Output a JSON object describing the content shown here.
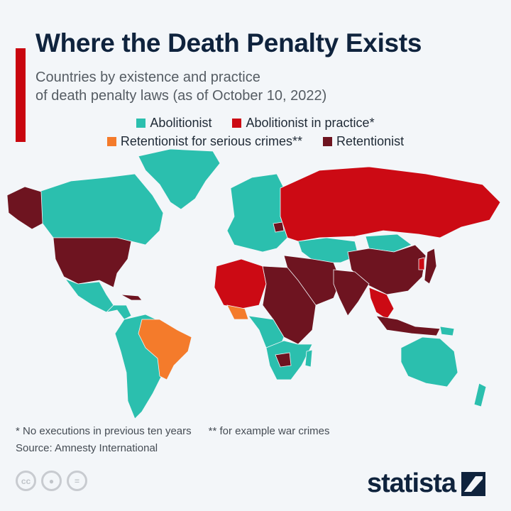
{
  "header": {
    "title": "Where the Death Penalty Exists",
    "subtitle_line1": "Countries by existence and practice",
    "subtitle_line2": "of death penalty laws (as of October 10, 2022)"
  },
  "legend": [
    {
      "label": "Abolitionist",
      "color": "#2bbfae"
    },
    {
      "label": "Abolitionist in practice*",
      "color": "#cc0a14"
    },
    {
      "label": "Retentionist for serious crimes**",
      "color": "#f47b2b"
    },
    {
      "label": "Retentionist",
      "color": "#6e1420"
    }
  ],
  "map": {
    "regions": [
      {
        "region": "Greenland",
        "category": "Abolitionist"
      },
      {
        "region": "Canada",
        "category": "Abolitionist"
      },
      {
        "region": "Alaska / United States",
        "category": "Retentionist"
      },
      {
        "region": "Mexico",
        "category": "Abolitionist"
      },
      {
        "region": "Brazil",
        "category": "Retentionist for serious crimes**"
      },
      {
        "region": "South America (rest)",
        "category": "Abolitionist"
      },
      {
        "region": "Europe",
        "category": "Abolitionist"
      },
      {
        "region": "Russia",
        "category": "Abolitionist in practice*"
      },
      {
        "region": "Kazakhstan",
        "category": "Abolitionist"
      },
      {
        "region": "China",
        "category": "Retentionist"
      },
      {
        "region": "Middle East",
        "category": "Retentionist"
      },
      {
        "region": "India",
        "category": "Retentionist"
      },
      {
        "region": "West Africa",
        "category": "Abolitionist in practice*"
      },
      {
        "region": "North-East Africa",
        "category": "Retentionist"
      },
      {
        "region": "Southern Africa",
        "category": "Abolitionist"
      },
      {
        "region": "Indonesia",
        "category": "Retentionist"
      },
      {
        "region": "Australia",
        "category": "Abolitionist"
      },
      {
        "region": "New Zealand",
        "category": "Abolitionist"
      },
      {
        "region": "Japan",
        "category": "Retentionist"
      }
    ]
  },
  "footer": {
    "note1": "* No executions in previous ten years",
    "note2": "** for example war crimes",
    "source": "Source: Amnesty International",
    "license_icons": [
      "cc-icon",
      "attribution-icon",
      "no-derivatives-icon"
    ],
    "logo": "statista"
  }
}
